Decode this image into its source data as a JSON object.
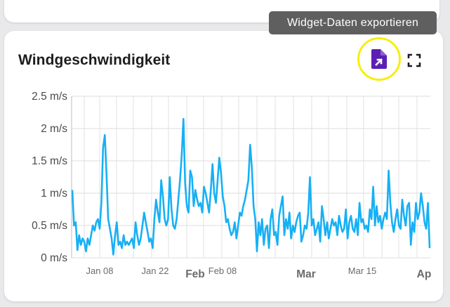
{
  "widget": {
    "title": "Windgeschwindigkeit",
    "tooltip": "Widget-Daten exportieren",
    "export_icon": "file-export-icon",
    "fullscreen_icon": "fullscreen-icon",
    "accent_color": "#5b1fb3",
    "highlight_color": "#f7ee0f",
    "line_color": "#16b0f5"
  },
  "chart_data": {
    "type": "line",
    "title": "Windgeschwindigkeit",
    "ylim": [
      0,
      2.5
    ],
    "y_ticks": [
      "2.5 m/s",
      "2 m/s",
      "1.5 m/s",
      "1 m/s",
      "0.5 m/s",
      "0 m/s"
    ],
    "x_ticks": [
      {
        "label": "Jan 08",
        "major": false
      },
      {
        "label": "Jan 22",
        "major": false
      },
      {
        "label": "Feb",
        "major": true
      },
      {
        "label": "Feb 08",
        "major": false
      },
      {
        "label": "Mar",
        "major": true
      },
      {
        "label": "Mar 15",
        "major": false
      },
      {
        "label": "Ap",
        "major": true
      }
    ],
    "grid": true,
    "series": [
      {
        "values": [
          1.05,
          0.5,
          0.55,
          0.12,
          0.35,
          0.2,
          0.3,
          0.25,
          0.1,
          0.3,
          0.2,
          0.35,
          0.5,
          0.42,
          0.55,
          0.6,
          0.45,
          0.85,
          1.7,
          1.9,
          1.3,
          0.6,
          0.45,
          0.3,
          0.05,
          0.35,
          0.55,
          0.2,
          0.25,
          0.15,
          0.35,
          0.2,
          0.25,
          0.2,
          0.25,
          0.3,
          0.15,
          0.55,
          0.35,
          0.2,
          0.3,
          0.5,
          0.7,
          0.55,
          0.4,
          0.25,
          0.3,
          0.15,
          0.6,
          0.9,
          0.7,
          0.55,
          1.2,
          0.95,
          0.6,
          0.5,
          0.6,
          1.25,
          0.75,
          0.5,
          0.45,
          0.6,
          0.9,
          1.2,
          1.6,
          2.15,
          1.15,
          0.8,
          0.7,
          1.35,
          1.25,
          0.8,
          1.05,
          0.9,
          0.8,
          0.85,
          0.7,
          1.1,
          1.0,
          0.85,
          0.7,
          1.05,
          1.45,
          1.0,
          0.85,
          1.2,
          1.55,
          1.3,
          0.95,
          0.8,
          0.55,
          0.6,
          0.45,
          0.35,
          0.4,
          0.55,
          0.3,
          0.5,
          0.7,
          0.65,
          0.8,
          0.9,
          1.05,
          1.2,
          1.75,
          1.4,
          0.8,
          0.6,
          0.1,
          0.55,
          0.35,
          0.6,
          0.2,
          0.45,
          0.5,
          0.15,
          0.6,
          0.75,
          0.35,
          0.4,
          0.2,
          0.65,
          0.8,
          0.95,
          0.35,
          0.6,
          0.45,
          0.7,
          0.3,
          0.5,
          0.4,
          0.55,
          0.65,
          0.7,
          0.25,
          0.35,
          0.5,
          0.45,
          0.7,
          1.25,
          0.5,
          0.6,
          0.35,
          0.45,
          0.55,
          0.25,
          0.8,
          0.6,
          0.35,
          0.55,
          0.3,
          0.45,
          0.6,
          0.5,
          0.55,
          0.35,
          0.65,
          0.5,
          0.4,
          0.45,
          0.75,
          0.3,
          0.55,
          0.65,
          0.45,
          0.4,
          0.6,
          0.35,
          0.85,
          0.55,
          0.6,
          0.45,
          0.5,
          0.4,
          0.75,
          0.6,
          1.1,
          0.5,
          0.8,
          0.55,
          0.65,
          0.45,
          0.6,
          0.7,
          0.6,
          1.35,
          0.85,
          0.55,
          0.4,
          0.6,
          0.75,
          0.5,
          0.45,
          0.9,
          0.65,
          0.5,
          0.8,
          0.85,
          0.2,
          0.55,
          0.4,
          0.85,
          0.6,
          0.7,
          1.0,
          0.8,
          0.55,
          0.45,
          0.85,
          0.15
        ]
      }
    ]
  }
}
